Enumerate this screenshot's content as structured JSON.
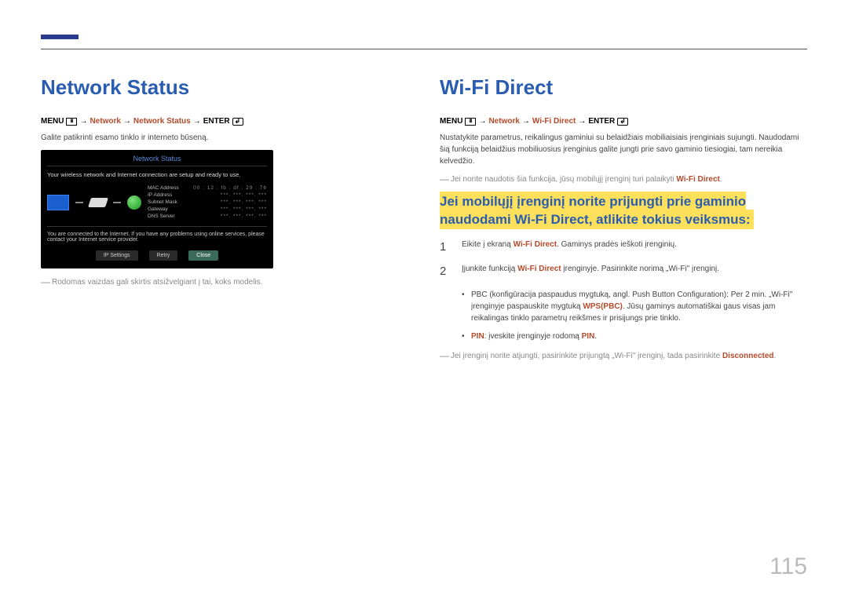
{
  "page_number": "115",
  "colors": {
    "heading": "#2a5db0",
    "brand": "#b54a2a",
    "highlight_bg": "#ffe05a",
    "topbar": "#2a3a8c",
    "muted": "#888888"
  },
  "left": {
    "title": "Network Status",
    "menu": {
      "prefix": "MENU",
      "path1": "Network",
      "path2": "Network Status",
      "enter": "ENTER"
    },
    "intro": "Galite patikrinti esamo tinklo ir interneto būseną.",
    "screenshot": {
      "title": "Network Status",
      "message_top": "Your wireless network and Internet connection are setup and ready to use.",
      "fields": {
        "mac_label": "MAC Address",
        "mac_value": "00 : 12 : fb : df : 29 : 76",
        "ip_label": "IP Address",
        "ip_value": "***. ***. ***. ***",
        "subnet_label": "Subnet Mask",
        "subnet_value": "***. ***. ***. ***",
        "gateway_label": "Gateway",
        "gateway_value": "***. ***. ***. ***",
        "dns_label": "DNS Server",
        "dns_value": "***. ***. ***. ***"
      },
      "message_bottom": "You are connected to the Internet. If you have any problems using online services, please contact your Internet service provider.",
      "buttons": {
        "ip": "IP Settings",
        "retry": "Retry",
        "close": "Close"
      }
    },
    "footnote": "Rodomas vaizdas gali skirtis atsižvelgiant į tai, koks modelis."
  },
  "right": {
    "title": "Wi-Fi Direct",
    "menu": {
      "prefix": "MENU",
      "path1": "Network",
      "path2": "Wi-Fi Direct",
      "enter": "ENTER"
    },
    "intro": "Nustatykite parametrus, reikalingus gaminiui su belaidžiais mobiliaisiais įrenginiais sujungti. Naudodami šią funkciją belaidžius mobiliuosius įrenginius galite jungti prie savo gaminio tiesiogiai, tam nereikia kelvedžio.",
    "support_note_pre": "Jei norite naudotis šia funkcija, jūsų mobilųjį įrenginį turi palaikyti ",
    "support_note_brand": "Wi-Fi Direct",
    "support_note_post": ".",
    "highlight": "Jei mobilųjį įrenginį norite prijungti prie gaminio naudodami Wi-Fi Direct, atlikite tokius veiksmus:",
    "steps": [
      {
        "num": "1",
        "pre": "Eikite į ekraną ",
        "brand": "Wi-Fi Direct",
        "post": ". Gaminys pradės ieškoti įrenginių."
      },
      {
        "num": "2",
        "pre": "Įjunkite funkciją ",
        "brand": "Wi-Fi Direct",
        "post": " įrenginyje. Pasirinkite norimą „Wi-Fi\" įrenginį."
      }
    ],
    "bullets": [
      {
        "pre": "PBC (konfigūracija paspaudus mygtuką, angl. Push Button Configuration): Per 2 min. „Wi-Fi\" įrenginyje paspauskite mygtuką ",
        "brand": "WPS(PBC)",
        "post": ". Jūsų gaminys automatiškai gaus visas jam reikalingas tinklo parametrų reikšmes ir prisijungs prie tinklo."
      },
      {
        "pre_brand": "PIN",
        "mid": ": įveskite įrenginyje rodomą ",
        "brand": "PIN",
        "post": "."
      }
    ],
    "disconnect_note_pre": "Jei įrenginį norite atjungti, pasirinkite prijungtą „Wi-Fi\" įrenginį, tada pasirinkite ",
    "disconnect_note_brand": "Disconnected",
    "disconnect_note_post": "."
  }
}
